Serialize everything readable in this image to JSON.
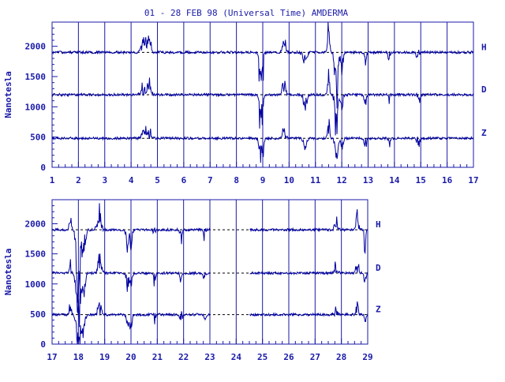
{
  "title": "01 - 28 FEB 98 (Universal Time) AMDERMA",
  "colors": {
    "axis": "#1a1aa8",
    "trace": "#0000a0",
    "baseline": "#000000"
  },
  "chart_data": [
    {
      "type": "line",
      "panel": "top",
      "ylabel": "Nanotesla",
      "xlabel": "",
      "xlim": [
        1,
        17
      ],
      "ylim": [
        0,
        2400
      ],
      "y_ticks": [
        0,
        500,
        1000,
        1500,
        2000
      ],
      "x_ticks": [
        1,
        2,
        3,
        4,
        5,
        6,
        7,
        8,
        9,
        10,
        11,
        12,
        13,
        14,
        15,
        16,
        17
      ],
      "grid": "vertical day lines",
      "series": [
        {
          "name": "H",
          "baseline": 1900
        },
        {
          "name": "D",
          "baseline": 1200
        },
        {
          "name": "Z",
          "baseline": 480
        }
      ],
      "disturbances": [
        {
          "day": 4.5,
          "amp": 180,
          "width": 0.15
        },
        {
          "day": 4.7,
          "amp": 220,
          "width": 0.08
        },
        {
          "day": 8.9,
          "amp": -600,
          "width": 0.06
        },
        {
          "day": 9.0,
          "amp": -450,
          "width": 0.05
        },
        {
          "day": 9.8,
          "amp": 300,
          "width": 0.08
        },
        {
          "day": 10.6,
          "amp": -200,
          "width": 0.1
        },
        {
          "day": 11.5,
          "amp": 450,
          "width": 0.05
        },
        {
          "day": 11.8,
          "amp": -700,
          "width": 0.08
        },
        {
          "day": 12.0,
          "amp": -350,
          "width": 0.06
        },
        {
          "day": 12.9,
          "amp": -200,
          "width": 0.06
        },
        {
          "day": 13.8,
          "amp": -150,
          "width": 0.05
        },
        {
          "day": 14.9,
          "amp": -150,
          "width": 0.08
        }
      ]
    },
    {
      "type": "line",
      "panel": "bottom",
      "ylabel": "Nanotesla",
      "xlabel": "",
      "xlim": [
        17,
        29
      ],
      "ylim": [
        0,
        2400
      ],
      "y_ticks": [
        0,
        500,
        1000,
        1500,
        2000
      ],
      "x_ticks": [
        17,
        18,
        19,
        20,
        21,
        22,
        23,
        24,
        25,
        26,
        27,
        28,
        29
      ],
      "grid": "vertical day lines",
      "data_gap": [
        23,
        24.5
      ],
      "series": [
        {
          "name": "H",
          "baseline": 1900
        },
        {
          "name": "D",
          "baseline": 1180
        },
        {
          "name": "Z",
          "baseline": 490
        }
      ],
      "disturbances": [
        {
          "day": 17.7,
          "amp": 300,
          "width": 0.05
        },
        {
          "day": 18.0,
          "amp": -1000,
          "width": 0.1
        },
        {
          "day": 18.2,
          "amp": -600,
          "width": 0.08
        },
        {
          "day": 18.8,
          "amp": 300,
          "width": 0.1
        },
        {
          "day": 19.9,
          "amp": -400,
          "width": 0.08
        },
        {
          "day": 20.0,
          "amp": -250,
          "width": 0.06
        },
        {
          "day": 20.9,
          "amp": -150,
          "width": 0.05
        },
        {
          "day": 21.9,
          "amp": -180,
          "width": 0.05
        },
        {
          "day": 22.8,
          "amp": -150,
          "width": 0.05
        },
        {
          "day": 27.8,
          "amp": 150,
          "width": 0.08
        },
        {
          "day": 28.6,
          "amp": 300,
          "width": 0.06
        },
        {
          "day": 28.9,
          "amp": -400,
          "width": 0.04
        }
      ]
    }
  ]
}
